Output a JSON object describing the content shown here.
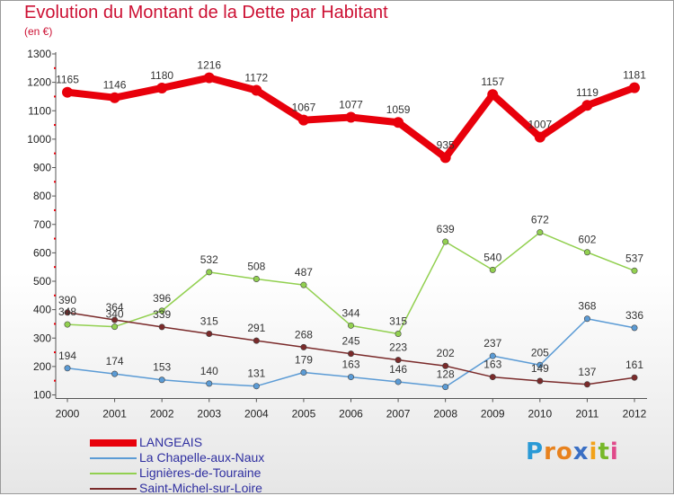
{
  "title": "Evolution du Montant de la Dette par Habitant",
  "subtitle": "(en €)",
  "logo": {
    "letters": [
      "P",
      "r",
      "o",
      "x",
      "i",
      "t",
      "i"
    ],
    "colors": [
      "#2a9ad6",
      "#e8821e",
      "#e8821e",
      "#3a6fc4",
      "#f2a21a",
      "#77b829",
      "#e04a8a"
    ]
  },
  "chart_data": {
    "type": "line",
    "title": "Evolution du Montant de la Dette par Habitant",
    "subtitle": "(en €)",
    "xlabel": "",
    "ylabel": "",
    "x": [
      "2000",
      "2001",
      "2002",
      "2003",
      "2004",
      "2005",
      "2006",
      "2007",
      "2008",
      "2009",
      "2010",
      "2011",
      "2012"
    ],
    "ylim": [
      100,
      1300
    ],
    "yticks": [
      100,
      200,
      300,
      400,
      500,
      600,
      700,
      800,
      900,
      1000,
      1100,
      1200,
      1300
    ],
    "grid": false,
    "legend_position": "bottom-left",
    "series": [
      {
        "name": "LANGEAIS",
        "color": "#e8000b",
        "values": [
          1165,
          1146,
          1180,
          1216,
          1172,
          1067,
          1077,
          1059,
          935,
          1157,
          1007,
          1119,
          1181
        ]
      },
      {
        "name": "La Chapelle-aux-Naux",
        "color": "#5b9bd5",
        "values": [
          194,
          174,
          153,
          140,
          131,
          179,
          163,
          146,
          128,
          237,
          205,
          368,
          336
        ]
      },
      {
        "name": "Lignières-de-Touraine",
        "color": "#92d050",
        "values": [
          348,
          340,
          396,
          532,
          508,
          487,
          344,
          315,
          639,
          540,
          672,
          602,
          537
        ]
      },
      {
        "name": "Saint-Michel-sur-Loire",
        "color": "#7a2a2a",
        "values": [
          390,
          364,
          339,
          315,
          291,
          268,
          245,
          223,
          202,
          163,
          149,
          137,
          161
        ]
      }
    ],
    "data_labels": [
      [
        "1165",
        "1146",
        "1180",
        "1216",
        "1172",
        "1067",
        "1077",
        "1059",
        "935",
        "1157",
        "1007",
        "1119",
        "1181"
      ],
      [
        "194",
        "174",
        "153",
        "140",
        "131",
        "179",
        "163",
        "146",
        "128",
        "237",
        "205",
        "368",
        "336"
      ],
      [
        "348",
        "340",
        "396",
        "532",
        "508",
        "487",
        "344",
        "315",
        "639",
        "540",
        "672",
        "602",
        "537"
      ],
      [
        "390",
        "364",
        "339",
        "315",
        "291",
        "268",
        "245",
        "223",
        "202",
        "163",
        "149",
        "137",
        "161"
      ]
    ]
  }
}
